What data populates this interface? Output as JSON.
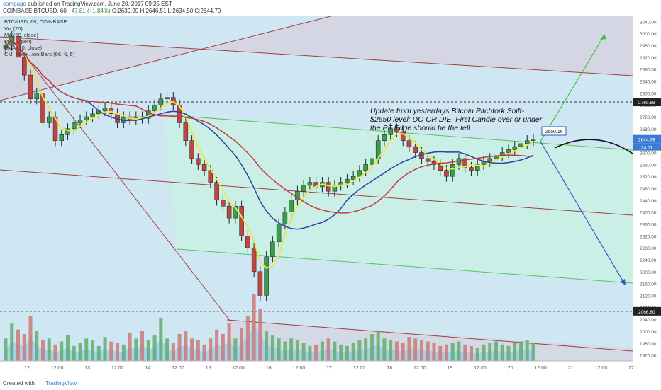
{
  "header": {
    "publisher": "compago",
    "published_text": "published on TradingView.com, June 20, 2017 09:25 EST",
    "symbol": "COINBASE:BTCUSD, 60",
    "change": "+47.81 (+1.84%)",
    "ohlc": "O:2639.99 H:2646.51 L:2634.50 C:2644.79"
  },
  "legend": {
    "title": "BTC/USD, 60, COINBASE",
    "items": [
      "Vol (20)",
      "MA (50, close)",
      "MA (... pen)",
      "EMA (10, close)",
      "CM_Price...ion-Bars (66, 6, 5)"
    ]
  },
  "annotation": {
    "lines": [
      "Update from yesterdays Bitcoin Pitchfork Shift-",
      "$2650 level: DO OR DIE. First Candle over or under",
      "the PF Edge should be the tell"
    ]
  },
  "footer": {
    "created_with": "Created with",
    "brand": "TradingView"
  },
  "colors": {
    "background": "#cfe6f3",
    "channel_fill": "#c8f0e3",
    "upper_band_fill": "#d9c9d6",
    "upcandle": "#3a9d4a",
    "downcandle": "#c0443f",
    "ma_yellow": "#e8e84a",
    "ma_blue": "#2b3fa8",
    "ema_red": "#c53a3a",
    "arrow_up": "#3ec43e",
    "arrow_down": "#2f55c9"
  },
  "chart_data": {
    "type": "candlestick",
    "y_axis": {
      "range": [
        1900,
        3060
      ],
      "ticks": [
        1920,
        1960,
        2000,
        2040,
        2080,
        2120,
        2160,
        2200,
        2240,
        2280,
        2320,
        2360,
        2400,
        2440,
        2480,
        2520,
        2560,
        2600,
        2640,
        2680,
        2720,
        2760,
        2800,
        2840,
        2880,
        2920,
        2960,
        3000,
        3040
      ],
      "tick_labels": [
        "1920.00",
        "1960.00",
        "2000.00",
        "2040.00",
        "2080.00",
        "2120.00",
        "2160.00",
        "2200.00",
        "2240.00",
        "2280.00",
        "2320.00",
        "2360.00",
        "2400.00",
        "2440.00",
        "2480.00",
        "2520.00",
        "2560.00",
        "2600.00",
        "2640.00",
        "2680.00",
        "2720.00",
        "2760.00",
        "2800.00",
        "2840.00",
        "2880.00",
        "2920.00",
        "2960.00",
        "3000.00",
        "3040.00"
      ]
    },
    "x_axis": {
      "tick_labels": [
        "12",
        "12:00",
        "13",
        "12:00",
        "14",
        "12:00",
        "15",
        "12:00",
        "16",
        "12:00",
        "17",
        "12:00",
        "18",
        "12:00",
        "19",
        "12:00",
        "20",
        "12:00",
        "21",
        "12:00",
        "22"
      ]
    },
    "price_labels": {
      "level_upper": "2769.88",
      "level_lower": "2066.80",
      "last_price": "2644.79",
      "countdown": "34:51",
      "target_box": "2650.16"
    },
    "levels": [
      2769.88,
      2066.8
    ],
    "closes": [
      2960,
      2990,
      2920,
      2860,
      2780,
      2800,
      2700,
      2720,
      2640,
      2660,
      2680,
      2700,
      2710,
      2720,
      2730,
      2740,
      2750,
      2730,
      2700,
      2720,
      2710,
      2720,
      2715,
      2740,
      2760,
      2780,
      2785,
      2760,
      2700,
      2640,
      2580,
      2560,
      2540,
      2500,
      2440,
      2420,
      2380,
      2420,
      2320,
      2280,
      2200,
      2120,
      2250,
      2300,
      2360,
      2400,
      2440,
      2470,
      2490,
      2500,
      2485,
      2500,
      2470,
      2490,
      2500,
      2510,
      2520,
      2540,
      2560,
      2580,
      2640,
      2660,
      2680,
      2670,
      2640,
      2620,
      2600,
      2580,
      2570,
      2560,
      2540,
      2520,
      2560,
      2580,
      2550,
      2540,
      2560,
      2570,
      2580,
      2590,
      2600,
      2610,
      2620,
      2630,
      2640,
      2645
    ],
    "volume": [
      30,
      50,
      42,
      36,
      60,
      40,
      28,
      30,
      22,
      26,
      35,
      20,
      24,
      30,
      28,
      20,
      32,
      26,
      24,
      22,
      38,
      30,
      40,
      28,
      34,
      58,
      30,
      24,
      36,
      40,
      30,
      28,
      22,
      30,
      42,
      36,
      50,
      30,
      44,
      60,
      90,
      70,
      40,
      34,
      30,
      26,
      30,
      28,
      24,
      20,
      22,
      26,
      30,
      26,
      22,
      20,
      24,
      28,
      30,
      36,
      40,
      30,
      28,
      26,
      24,
      32,
      30,
      28,
      26,
      24,
      20,
      22,
      24,
      26,
      22,
      20,
      18,
      22,
      24,
      26,
      22,
      20,
      24,
      26,
      28,
      24
    ]
  }
}
